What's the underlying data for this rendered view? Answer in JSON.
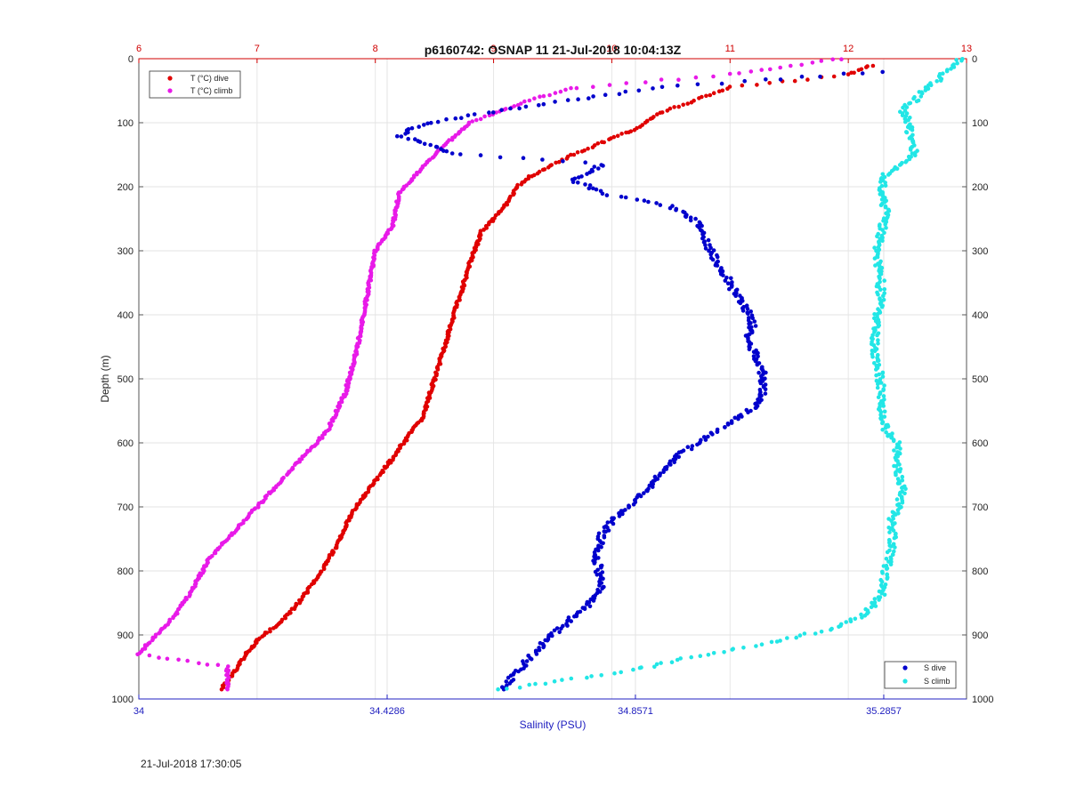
{
  "chart_data": {
    "type": "scatter",
    "title": "p6160742: OSNAP 11 21-Jul-2018 10:04:13Z",
    "ylabel": "Depth (m)",
    "xlabel_bottom": "Salinity (PSU)",
    "ylim": [
      1000,
      0
    ],
    "yticks": [
      "0",
      "100",
      "200",
      "300",
      "400",
      "500",
      "600",
      "700",
      "800",
      "900",
      "1000"
    ],
    "x_bottom": {
      "lim": [
        34,
        35.4286
      ],
      "ticks": [
        "34",
        "34.4286",
        "34.8571",
        "35.2857"
      ],
      "tick_values": [
        34,
        34.4286,
        34.8571,
        35.2857
      ]
    },
    "x_top": {
      "lim": [
        6,
        13
      ],
      "ticks": [
        "6",
        "7",
        "8",
        "9",
        "10",
        "11",
        "12",
        "13"
      ],
      "tick_values": [
        6,
        7,
        8,
        9,
        10,
        11,
        12,
        13
      ]
    },
    "grid": true,
    "legend_temperature": {
      "placement": "top-left",
      "entries": [
        "T (°C) dive",
        "T (°C) climb"
      ]
    },
    "legend_salinity": {
      "placement": "bottom-right",
      "entries": [
        "S dive",
        "S climb"
      ]
    },
    "series": [
      {
        "name": "T (°C) dive",
        "axis": "top",
        "color": "#e00000",
        "points": [
          [
            12.2,
            10
          ],
          [
            12.0,
            25
          ],
          [
            11.0,
            45
          ],
          [
            10.7,
            65
          ],
          [
            10.4,
            85
          ],
          [
            10.2,
            110
          ],
          [
            9.8,
            140
          ],
          [
            9.5,
            165
          ],
          [
            9.3,
            185
          ],
          [
            9.2,
            200
          ],
          [
            9.1,
            230
          ],
          [
            8.9,
            270
          ],
          [
            8.8,
            320
          ],
          [
            8.7,
            380
          ],
          [
            8.6,
            440
          ],
          [
            8.5,
            500
          ],
          [
            8.4,
            560
          ],
          [
            8.2,
            610
          ],
          [
            8.0,
            660
          ],
          [
            7.8,
            710
          ],
          [
            7.7,
            750
          ],
          [
            7.55,
            800
          ],
          [
            7.35,
            850
          ],
          [
            7.2,
            880
          ],
          [
            7.05,
            900
          ],
          [
            6.9,
            930
          ],
          [
            6.8,
            960
          ],
          [
            6.7,
            985
          ]
        ]
      },
      {
        "name": "T (°C) climb",
        "axis": "top",
        "color": "#e81ae8",
        "points": [
          [
            11.95,
            0
          ],
          [
            11.0,
            25
          ],
          [
            9.7,
            45
          ],
          [
            9.3,
            65
          ],
          [
            8.8,
            100
          ],
          [
            8.5,
            150
          ],
          [
            8.2,
            210
          ],
          [
            8.15,
            260
          ],
          [
            8.0,
            300
          ],
          [
            7.95,
            350
          ],
          [
            7.9,
            400
          ],
          [
            7.85,
            450
          ],
          [
            7.75,
            520
          ],
          [
            7.6,
            580
          ],
          [
            7.4,
            620
          ],
          [
            7.2,
            660
          ],
          [
            7.0,
            700
          ],
          [
            6.8,
            740
          ],
          [
            6.6,
            780
          ],
          [
            6.45,
            830
          ],
          [
            6.3,
            870
          ],
          [
            6.15,
            900
          ],
          [
            6.0,
            930
          ],
          [
            6.75,
            950
          ],
          [
            6.75,
            985
          ]
        ]
      },
      {
        "name": "S dive",
        "axis": "bottom",
        "color": "#0000cc",
        "points": [
          [
            35.2857,
            20
          ],
          [
            34.9,
            45
          ],
          [
            34.7,
            70
          ],
          [
            34.5,
            100
          ],
          [
            34.45,
            120
          ],
          [
            34.55,
            150
          ],
          [
            34.8,
            165
          ],
          [
            34.75,
            190
          ],
          [
            34.8,
            210
          ],
          [
            34.92,
            230
          ],
          [
            34.97,
            260
          ],
          [
            34.98,
            290
          ],
          [
            35.0,
            320
          ],
          [
            35.02,
            350
          ],
          [
            35.04,
            380
          ],
          [
            35.06,
            410
          ],
          [
            35.05,
            440
          ],
          [
            35.07,
            470
          ],
          [
            35.08,
            500
          ],
          [
            35.07,
            540
          ],
          [
            35.02,
            570
          ],
          [
            34.98,
            590
          ],
          [
            34.93,
            620
          ],
          [
            34.9,
            650
          ],
          [
            34.87,
            680
          ],
          [
            34.83,
            710
          ],
          [
            34.8,
            740
          ],
          [
            34.79,
            780
          ],
          [
            34.8,
            820
          ],
          [
            34.78,
            850
          ],
          [
            34.74,
            880
          ],
          [
            34.7,
            910
          ],
          [
            34.67,
            940
          ],
          [
            34.65,
            960
          ],
          [
            34.63,
            985
          ]
        ]
      },
      {
        "name": "S climb",
        "axis": "bottom",
        "color": "#22e6e6",
        "points": [
          [
            35.42,
            0
          ],
          [
            35.32,
            80
          ],
          [
            35.33,
            110
          ],
          [
            35.34,
            150
          ],
          [
            35.29,
            180
          ],
          [
            35.28,
            210
          ],
          [
            35.29,
            240
          ],
          [
            35.28,
            280
          ],
          [
            35.27,
            300
          ],
          [
            35.28,
            340
          ],
          [
            35.28,
            380
          ],
          [
            35.27,
            420
          ],
          [
            35.27,
            460
          ],
          [
            35.28,
            500
          ],
          [
            35.28,
            540
          ],
          [
            35.29,
            580
          ],
          [
            35.31,
            600
          ],
          [
            35.31,
            640
          ],
          [
            35.32,
            680
          ],
          [
            35.3,
            720
          ],
          [
            35.3,
            760
          ],
          [
            35.29,
            800
          ],
          [
            35.28,
            840
          ],
          [
            35.25,
            870
          ],
          [
            35.2,
            890
          ],
          [
            35.1,
            910
          ],
          [
            34.95,
            935
          ],
          [
            34.85,
            955
          ],
          [
            34.7,
            975
          ],
          [
            34.62,
            985
          ]
        ]
      }
    ]
  },
  "footer": {
    "timestamp": "21-Jul-2018 17:30:05"
  }
}
